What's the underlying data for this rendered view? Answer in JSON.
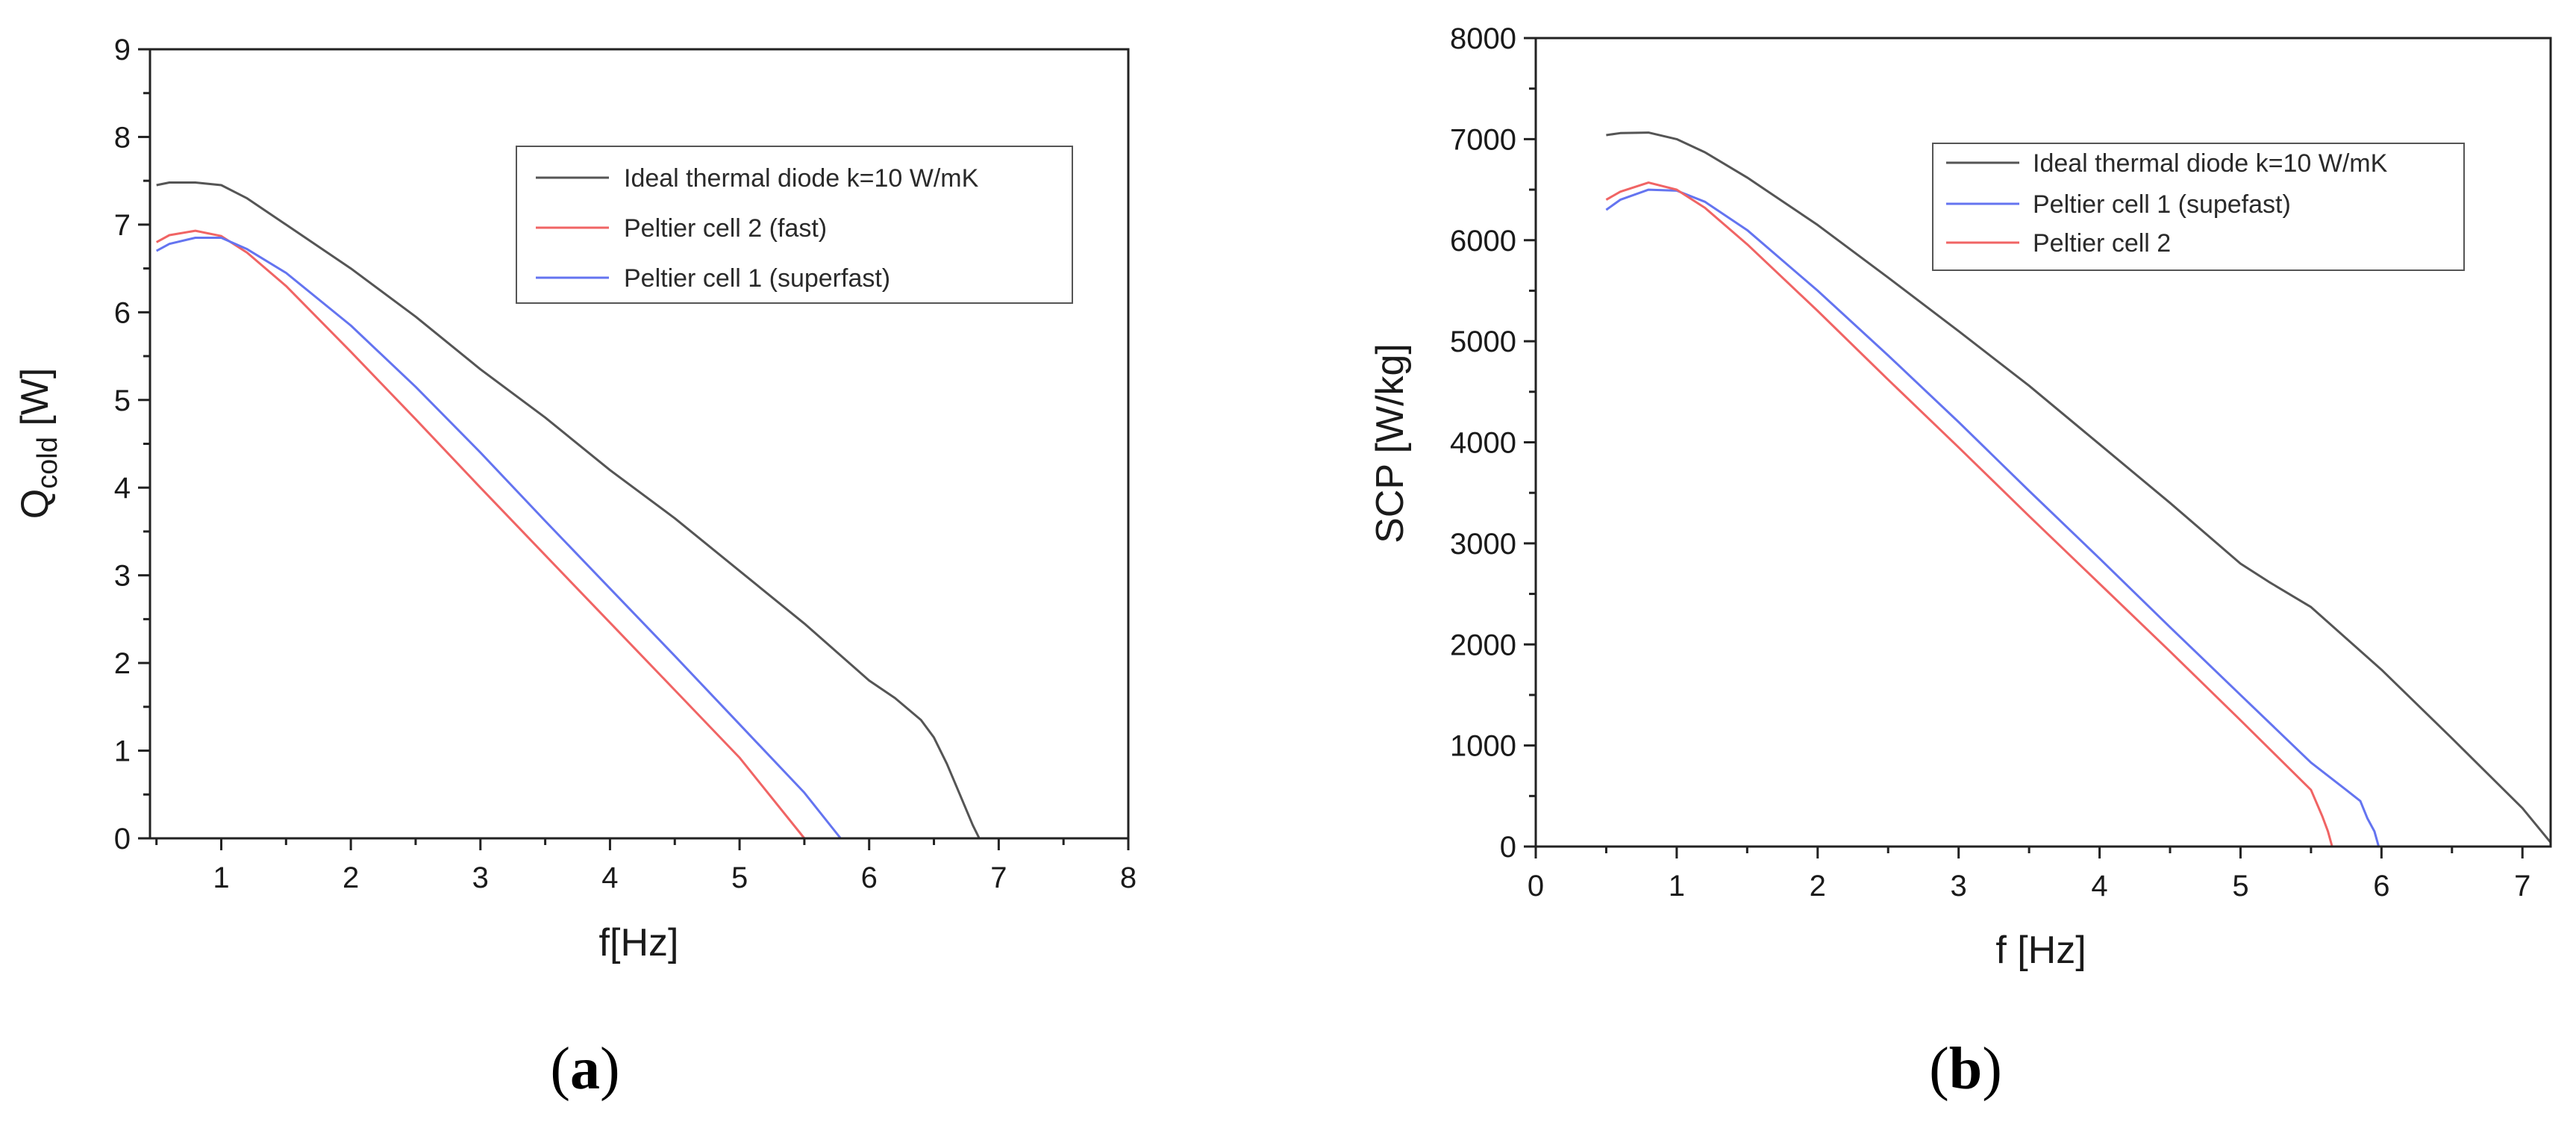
{
  "chart_data": [
    {
      "type": "line",
      "panel_label": [
        "(",
        "a",
        ")"
      ],
      "xlabel": "f[Hz]",
      "ylabel": {
        "main": "Q",
        "sub": "cold",
        "unit": " [W]"
      },
      "xlim": [
        0.45,
        8
      ],
      "ylim": [
        0,
        9
      ],
      "xticks": [
        1,
        2,
        3,
        4,
        5,
        6,
        7,
        8
      ],
      "yticks": [
        0,
        1,
        2,
        3,
        4,
        5,
        6,
        7,
        8,
        9
      ],
      "minor_ticks": true,
      "grid": false,
      "legend_position": "top-right",
      "series": [
        {
          "name": "Ideal thermal diode k=10 W/mK",
          "color": "#555555",
          "x": [
            0.5,
            0.6,
            0.8,
            1.0,
            1.2,
            1.5,
            2.0,
            2.5,
            3.0,
            3.5,
            4.0,
            4.5,
            5.0,
            5.5,
            6.0,
            6.2,
            6.4,
            6.5,
            6.6,
            6.7,
            6.8,
            6.85
          ],
          "y": [
            7.45,
            7.48,
            7.48,
            7.45,
            7.3,
            7.0,
            6.5,
            5.95,
            5.35,
            4.8,
            4.2,
            3.65,
            3.05,
            2.45,
            1.8,
            1.6,
            1.35,
            1.15,
            0.85,
            0.5,
            0.15,
            0
          ]
        },
        {
          "name": "Peltier cell 2 (fast)",
          "color": "#f06464",
          "x": [
            0.5,
            0.6,
            0.8,
            1.0,
            1.2,
            1.5,
            2.0,
            2.5,
            3.0,
            3.5,
            4.0,
            4.5,
            5.0,
            5.5
          ],
          "y": [
            6.8,
            6.88,
            6.93,
            6.87,
            6.68,
            6.3,
            5.55,
            4.78,
            4.0,
            3.23,
            2.46,
            1.69,
            0.92,
            0
          ]
        },
        {
          "name": "Peltier cell 1 (superfast)",
          "color": "#6474f0",
          "x": [
            0.5,
            0.6,
            0.8,
            1.0,
            1.2,
            1.5,
            2.0,
            2.5,
            3.0,
            3.5,
            4.0,
            4.5,
            5.0,
            5.5,
            5.78
          ],
          "y": [
            6.7,
            6.78,
            6.85,
            6.85,
            6.72,
            6.45,
            5.85,
            5.15,
            4.4,
            3.62,
            2.85,
            2.08,
            1.3,
            0.52,
            0
          ]
        }
      ]
    },
    {
      "type": "line",
      "panel_label": [
        "(",
        "b",
        ")"
      ],
      "xlabel": "f [Hz]",
      "ylabel": {
        "main": "SCP [W/kg]",
        "sub": "",
        "unit": ""
      },
      "xlim": [
        0,
        7.2
      ],
      "ylim": [
        0,
        8000
      ],
      "xticks": [
        0,
        1,
        2,
        3,
        4,
        5,
        6,
        7
      ],
      "yticks": [
        0,
        1000,
        2000,
        3000,
        4000,
        5000,
        6000,
        7000,
        8000
      ],
      "minor_ticks": true,
      "grid": false,
      "legend_position": "top-right",
      "series": [
        {
          "name": "Ideal thermal diode k=10 W/mK",
          "color": "#555555",
          "x": [
            0.5,
            0.6,
            0.8,
            1.0,
            1.2,
            1.5,
            2.0,
            2.5,
            3.0,
            3.5,
            4.0,
            4.5,
            5.0,
            5.2,
            5.5,
            6.0,
            6.5,
            7.0,
            7.2
          ],
          "y": [
            7040,
            7060,
            7065,
            7000,
            6870,
            6620,
            6150,
            5630,
            5100,
            4560,
            3980,
            3400,
            2800,
            2620,
            2370,
            1750,
            1070,
            380,
            40
          ]
        },
        {
          "name": "Peltier cell 1 (supefast)",
          "color": "#6474f0",
          "x": [
            0.5,
            0.6,
            0.8,
            1.0,
            1.2,
            1.5,
            2.0,
            2.5,
            3.0,
            3.5,
            4.0,
            4.5,
            5.0,
            5.5,
            5.75,
            5.85,
            5.9,
            5.95,
            5.98
          ],
          "y": [
            6300,
            6400,
            6500,
            6490,
            6380,
            6100,
            5500,
            4860,
            4200,
            3520,
            2850,
            2170,
            1500,
            830,
            560,
            450,
            280,
            150,
            0
          ]
        },
        {
          "name": "Peltier cell 2",
          "color": "#f06464",
          "x": [
            0.5,
            0.6,
            0.8,
            1.0,
            1.2,
            1.5,
            2.0,
            2.5,
            3.0,
            3.5,
            4.0,
            4.5,
            5.0,
            5.5,
            5.58,
            5.62,
            5.65
          ],
          "y": [
            6400,
            6480,
            6570,
            6500,
            6320,
            5960,
            5300,
            4620,
            3950,
            3270,
            2600,
            1930,
            1250,
            560,
            300,
            150,
            0
          ]
        }
      ]
    }
  ]
}
